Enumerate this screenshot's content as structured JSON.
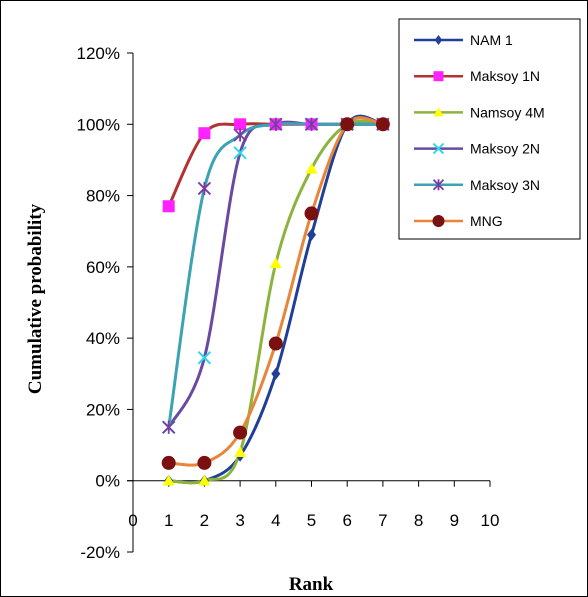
{
  "chart_data": {
    "type": "line",
    "title": "",
    "xlabel": "Rank",
    "ylabel": "Cumulative probability",
    "xlim": [
      0,
      10
    ],
    "ylim": [
      -0.2,
      1.2
    ],
    "x_ticks": [
      "0",
      "1",
      "2",
      "3",
      "4",
      "5",
      "6",
      "7",
      "8",
      "9",
      "10"
    ],
    "y_ticks": [
      "-20%",
      "0%",
      "20%",
      "40%",
      "60%",
      "80%",
      "100%",
      "120%"
    ],
    "grid": false,
    "legend_position": "top-right",
    "smooth": true,
    "x": [
      1,
      2,
      3,
      4,
      5,
      6,
      7
    ],
    "series": [
      {
        "name": "NAM 1",
        "color": "#1f3f99",
        "marker": "diamond",
        "marker_color": "#1f3f99",
        "values": [
          0.0,
          0.0,
          0.07,
          0.3,
          0.69,
          1.0,
          1.0
        ]
      },
      {
        "name": "Maksoy  1N",
        "color": "#b33232",
        "marker": "square",
        "marker_color": "#ff22ff",
        "values": [
          0.77,
          0.975,
          1.0,
          1.0,
          1.0,
          1.0,
          1.0
        ]
      },
      {
        "name": "Namsoy 4M",
        "color": "#8db33d",
        "marker": "triangle",
        "marker_color": "#ffff00",
        "values": [
          0.0,
          0.0,
          0.08,
          0.61,
          0.875,
          1.0,
          1.0
        ]
      },
      {
        "name": "Maksoy 2N",
        "color": "#6a4aa0",
        "marker": "x",
        "marker_color": "#33d6ee",
        "values": [
          0.15,
          0.345,
          0.92,
          1.0,
          1.0,
          1.0,
          1.0
        ]
      },
      {
        "name": "Maksoy 3N",
        "color": "#3ca3b5",
        "marker": "star",
        "marker_color": "#7a3aa0",
        "values": [
          0.15,
          0.82,
          0.97,
          1.0,
          1.0,
          1.0,
          1.0
        ]
      },
      {
        "name": "MNG",
        "color": "#e8853a",
        "marker": "circle",
        "marker_color": "#7a1010",
        "values": [
          0.05,
          0.05,
          0.135,
          0.385,
          0.75,
          1.0,
          1.0
        ]
      }
    ]
  }
}
